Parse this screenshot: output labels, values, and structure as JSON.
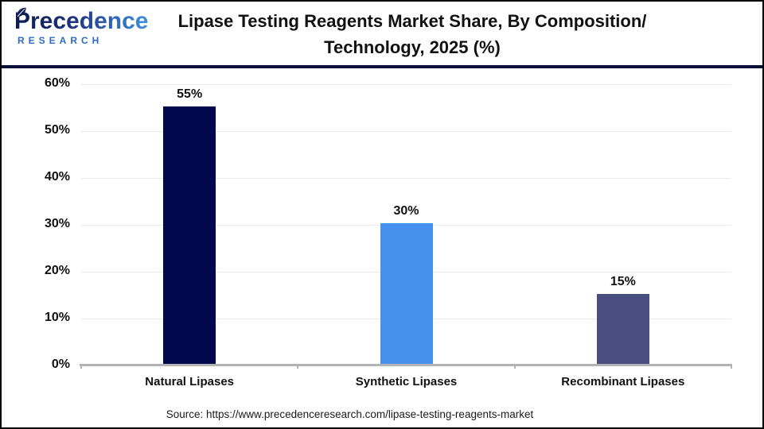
{
  "header": {
    "logo": {
      "brand": "Precedence",
      "sub": "RESEARCH"
    },
    "title_line1": "Lipase Testing Reagents Market Share, By Composition/",
    "title_line2": "Technology, 2025 (%)"
  },
  "chart_data": {
    "type": "bar",
    "title": "Lipase Testing Reagents Market Share, By Composition/Technology, 2025 (%)",
    "categories": [
      "Natural Lipases",
      "Synthetic Lipases",
      "Recombinant Lipases"
    ],
    "values": [
      55,
      30,
      15
    ],
    "value_labels": [
      "55%",
      "30%",
      "15%"
    ],
    "bar_colors": [
      "#02084e",
      "#4691ee",
      "#4a4d80"
    ],
    "xlabel": "",
    "ylabel": "",
    "ylim": [
      0,
      60
    ],
    "ytick_step": 10,
    "ytick_labels": [
      "0%",
      "10%",
      "20%",
      "30%",
      "40%",
      "50%",
      "60%"
    ],
    "grid": true,
    "legend": false
  },
  "source": {
    "text": "Source: https://www.precedenceresearch.com/lipase-testing-reagents-market"
  },
  "colors": {
    "header_divider": "#0a0f38",
    "gridline": "#e9e9e9",
    "axis": "#b3b3b3",
    "logo_navy": "#0f1b4d",
    "logo_blue": "#2f6bbf",
    "title_text": "#111111"
  }
}
